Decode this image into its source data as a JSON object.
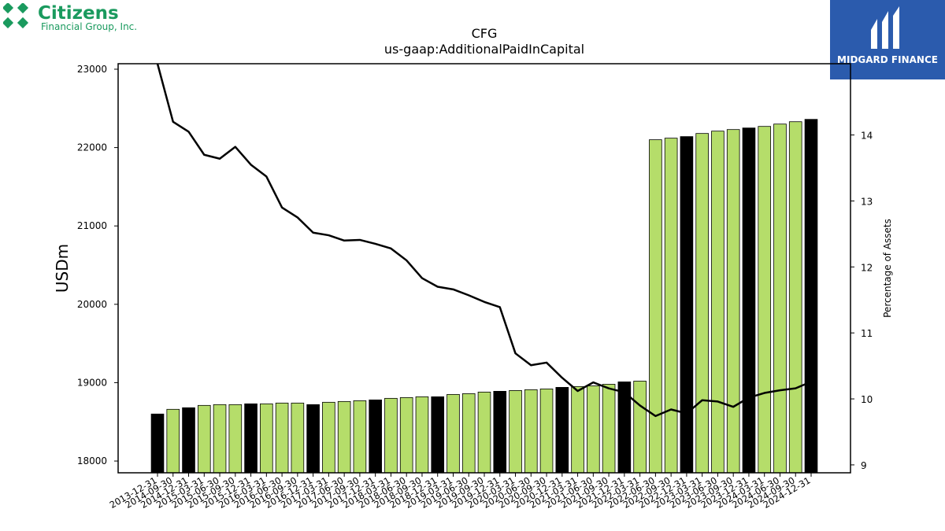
{
  "logos": {
    "left": {
      "name": "Citizens",
      "subtitle": "Financial Group, Inc.",
      "color": "#1a9a5e"
    },
    "right": {
      "name": "MIDGARD FINANCE",
      "color": "#2b5bad"
    }
  },
  "chart_data": {
    "type": "bar",
    "title": "CFG",
    "subtitle": "us-gaap:AdditionalPaidInCapital",
    "ylabel": "USDm",
    "y2label": "Percentage of Assets",
    "ylim": [
      17850,
      23070
    ],
    "y2lim": [
      8.88,
      15.08
    ],
    "yticks": [
      18000,
      19000,
      20000,
      21000,
      22000,
      23000
    ],
    "y2ticks": [
      9,
      10,
      11,
      12,
      13,
      14
    ],
    "grid": false,
    "colors": {
      "bar": "#b5dd6a",
      "bar_highlight": "#000000",
      "line": "#000000"
    },
    "categories": [
      "2013-12-31",
      "2014-09-30",
      "2014-12-31",
      "2015-03-31",
      "2015-06-30",
      "2015-09-30",
      "2015-12-31",
      "2016-03-31",
      "2016-06-30",
      "2016-09-30",
      "2016-12-31",
      "2017-03-31",
      "2017-06-30",
      "2017-09-30",
      "2017-12-31",
      "2018-03-31",
      "2018-06-30",
      "2018-09-30",
      "2018-12-31",
      "2019-03-31",
      "2019-06-30",
      "2019-09-30",
      "2019-12-31",
      "2020-03-31",
      "2020-06-30",
      "2020-09-30",
      "2020-12-31",
      "2021-03-31",
      "2021-06-30",
      "2021-09-30",
      "2021-12-31",
      "2022-03-31",
      "2022-06-30",
      "2022-09-30",
      "2022-12-31",
      "2023-03-31",
      "2023-06-30",
      "2023-09-30",
      "2023-12-31",
      "2024-03-31",
      "2024-06-30",
      "2024-09-30",
      "2024-12-31"
    ],
    "series": [
      {
        "type": "bar",
        "values": [
          18600,
          18660,
          18680,
          18710,
          18720,
          18720,
          18730,
          18730,
          18740,
          18740,
          18720,
          18750,
          18760,
          18770,
          18780,
          18800,
          18810,
          18820,
          18820,
          18850,
          18860,
          18880,
          18890,
          18900,
          18910,
          18920,
          18940,
          18950,
          18960,
          18980,
          19010,
          19020,
          22100,
          22120,
          22140,
          22180,
          22210,
          22230,
          22250,
          22270,
          22300,
          22330,
          22360
        ],
        "highlight": [
          true,
          false,
          true,
          false,
          false,
          false,
          true,
          false,
          false,
          false,
          true,
          false,
          false,
          false,
          true,
          false,
          false,
          false,
          true,
          false,
          false,
          false,
          true,
          false,
          false,
          false,
          true,
          false,
          false,
          false,
          true,
          false,
          false,
          false,
          true,
          false,
          false,
          false,
          true,
          false,
          false,
          false,
          true
        ]
      },
      {
        "type": "line",
        "axis": "right",
        "values": [
          15.1,
          14.2,
          14.05,
          13.7,
          13.64,
          13.82,
          13.55,
          13.37,
          12.9,
          12.75,
          12.52,
          12.48,
          12.4,
          12.41,
          12.35,
          12.28,
          12.1,
          11.83,
          11.7,
          11.66,
          11.57,
          11.47,
          11.39,
          10.69,
          10.51,
          10.55,
          10.32,
          10.12,
          10.25,
          10.16,
          10.1,
          9.9,
          9.74,
          9.84,
          9.78,
          9.98,
          9.96,
          9.88,
          10.02,
          10.09,
          10.13,
          10.16,
          10.26
        ]
      }
    ]
  }
}
